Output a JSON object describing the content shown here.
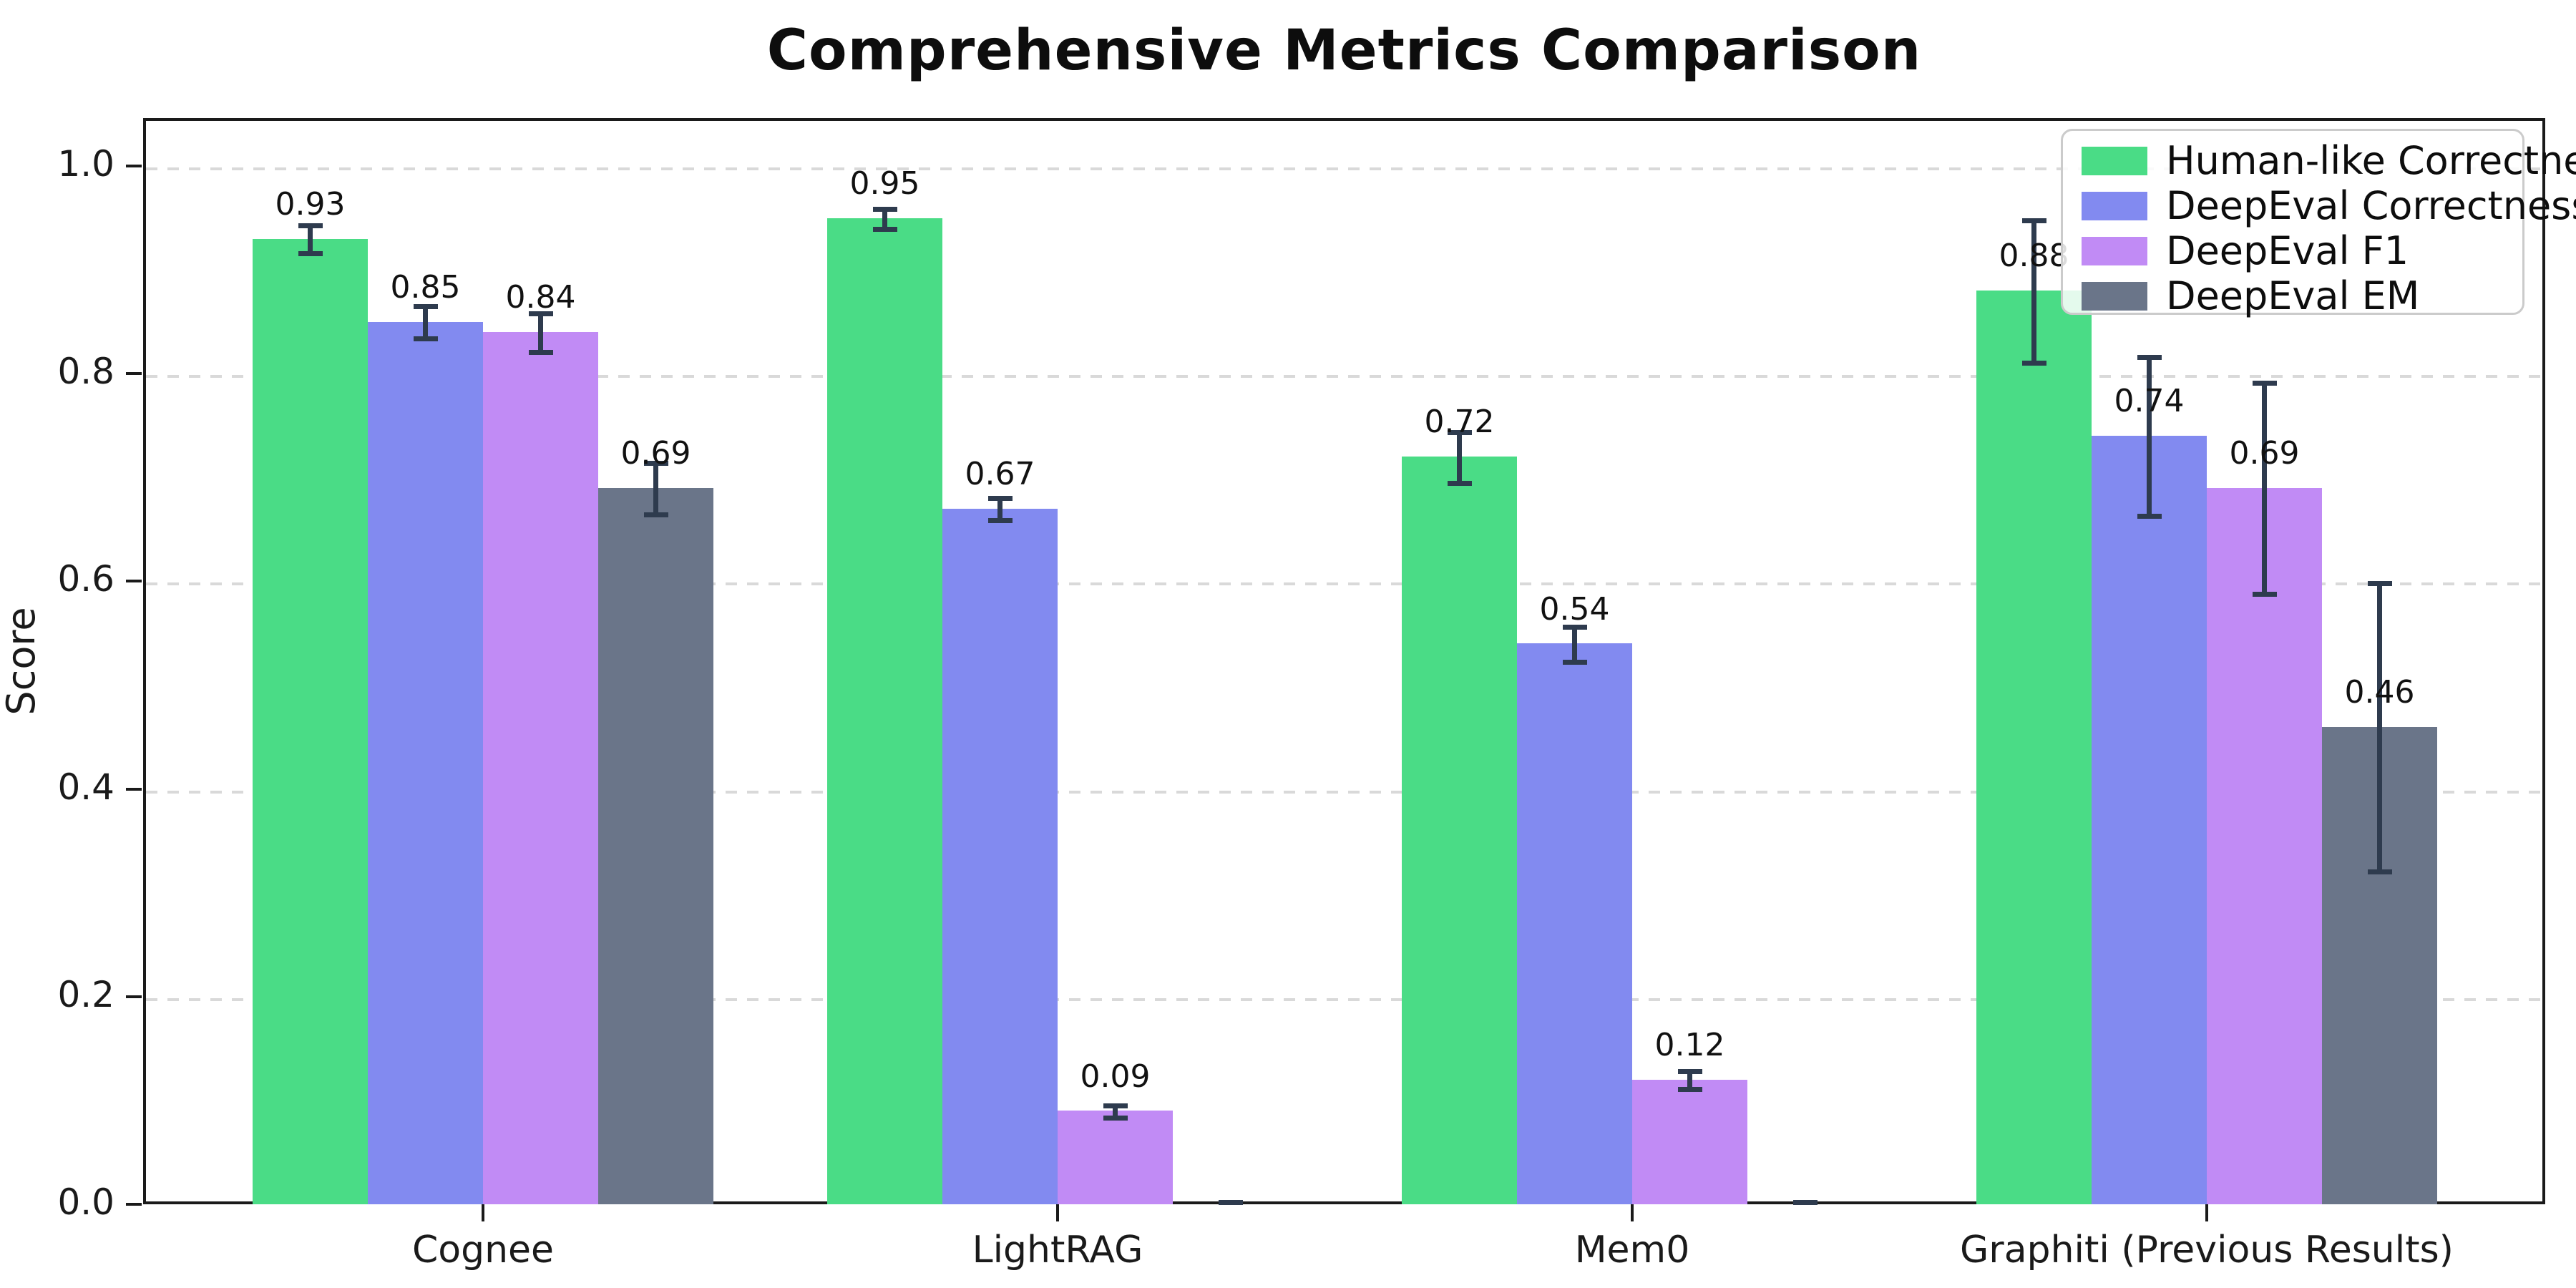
{
  "chart_data": {
    "type": "bar",
    "title": "Comprehensive Metrics Comparison",
    "ylabel": "Score",
    "xlabel": "",
    "categories": [
      "Cognee",
      "LightRAG",
      "Mem0",
      "Graphiti (Previous Results)"
    ],
    "series": [
      {
        "name": "Human-like Correctness",
        "color": "#4adc86",
        "values": [
          0.93,
          0.95,
          0.72,
          0.88
        ],
        "errors": [
          0.015,
          0.011,
          0.026,
          0.07
        ],
        "labels": [
          "0.93",
          "0.95",
          "0.72",
          "0.88"
        ]
      },
      {
        "name": "DeepEval Correctness",
        "color": "#828af0",
        "values": [
          0.85,
          0.67,
          0.54,
          0.74
        ],
        "errors": [
          0.017,
          0.012,
          0.018,
          0.078
        ],
        "labels": [
          "0.85",
          "0.67",
          "0.54",
          "0.74"
        ]
      },
      {
        "name": "DeepEval F1",
        "color": "#c18bf5",
        "values": [
          0.84,
          0.09,
          0.12,
          0.69
        ],
        "errors": [
          0.02,
          0.007,
          0.01,
          0.103
        ],
        "labels": [
          "0.84",
          "0.09",
          "0.12",
          "0.69"
        ]
      },
      {
        "name": "DeepEval EM",
        "color": "#6a7589",
        "values": [
          0.69,
          0.0,
          0.0,
          0.46
        ],
        "errors": [
          0.026,
          0.004,
          0.004,
          0.14
        ],
        "labels": [
          "0.69",
          "",
          "",
          "0.46"
        ]
      }
    ],
    "yticks": [
      "0.0",
      "0.2",
      "0.4",
      "0.6",
      "0.8",
      "1.0"
    ],
    "ylim": [
      0.0,
      1.046
    ],
    "grid": "horizontal-dashed",
    "legend_position": "upper-right",
    "background": "#ffffff",
    "axis_color": "#1a1a1a",
    "grid_color": "#d9d9d9",
    "errorbar_color": "#2e3b4e"
  }
}
